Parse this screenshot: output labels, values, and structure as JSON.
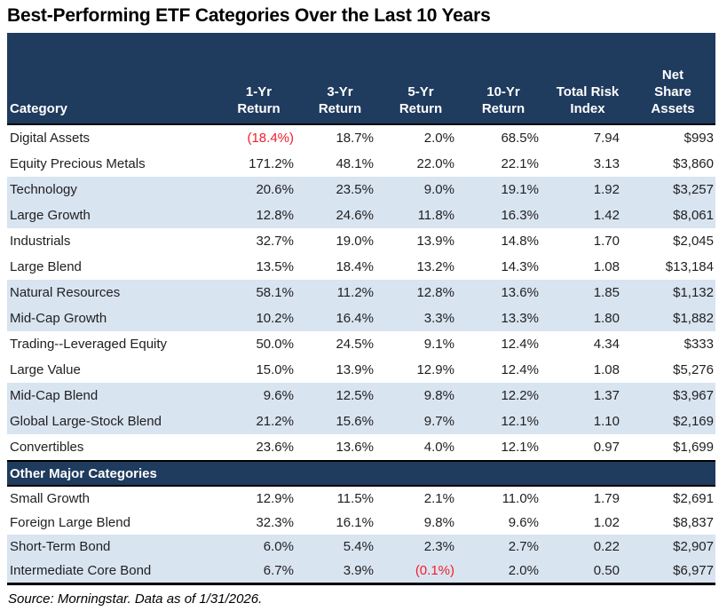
{
  "title": "Best-Performing ETF Categories Over the Last 10 Years",
  "colors": {
    "header_bg": "#1F3B5E",
    "band_row_bg": "#D9E4F1",
    "negative_value": "#F01E28",
    "header_text": "#ffffff",
    "body_text": "#1f1f1f"
  },
  "footer": {
    "source_note": "Source: Morningstar. Data as of 1/31/2026."
  },
  "chart_data": {
    "type": "table",
    "title": "Best-Performing ETF Categories Over the Last 10 Years",
    "columns": [
      "Category",
      "1-Yr Return",
      "3-Yr Return",
      "5-Yr Return",
      "10-Yr Return",
      "Total Risk Index",
      "Net Share Assets"
    ],
    "columns_lines": [
      {
        "lines": [
          "Category"
        ]
      },
      {
        "lines": [
          "1-Yr",
          "Return"
        ]
      },
      {
        "lines": [
          "3-Yr",
          "Return"
        ]
      },
      {
        "lines": [
          "5-Yr",
          "Return"
        ]
      },
      {
        "lines": [
          "10-Yr",
          "Return"
        ]
      },
      {
        "lines": [
          "Total Risk",
          "Index"
        ]
      },
      {
        "lines": [
          "Net",
          "Share",
          "Assets"
        ]
      }
    ],
    "main_rows": [
      {
        "category": "Digital Assets",
        "r1": "(18.4%)",
        "r3": "18.7%",
        "r5": "2.0%",
        "r10": "68.5%",
        "risk": "7.94",
        "assets": "$993"
      },
      {
        "category": "Equity Precious Metals",
        "r1": "171.2%",
        "r3": "48.1%",
        "r5": "22.0%",
        "r10": "22.1%",
        "risk": "3.13",
        "assets": "$3,860"
      },
      {
        "category": "Technology",
        "r1": "20.6%",
        "r3": "23.5%",
        "r5": "9.0%",
        "r10": "19.1%",
        "risk": "1.92",
        "assets": "$3,257"
      },
      {
        "category": "Large Growth",
        "r1": "12.8%",
        "r3": "24.6%",
        "r5": "11.8%",
        "r10": "16.3%",
        "risk": "1.42",
        "assets": "$8,061"
      },
      {
        "category": "Industrials",
        "r1": "32.7%",
        "r3": "19.0%",
        "r5": "13.9%",
        "r10": "14.8%",
        "risk": "1.70",
        "assets": "$2,045"
      },
      {
        "category": "Large Blend",
        "r1": "13.5%",
        "r3": "18.4%",
        "r5": "13.2%",
        "r10": "14.3%",
        "risk": "1.08",
        "assets": "$13,184"
      },
      {
        "category": "Natural Resources",
        "r1": "58.1%",
        "r3": "11.2%",
        "r5": "12.8%",
        "r10": "13.6%",
        "risk": "1.85",
        "assets": "$1,132"
      },
      {
        "category": "Mid-Cap Growth",
        "r1": "10.2%",
        "r3": "16.4%",
        "r5": "3.3%",
        "r10": "13.3%",
        "risk": "1.80",
        "assets": "$1,882"
      },
      {
        "category": "Trading--Leveraged Equity",
        "r1": "50.0%",
        "r3": "24.5%",
        "r5": "9.1%",
        "r10": "12.4%",
        "risk": "4.34",
        "assets": "$333"
      },
      {
        "category": "Large Value",
        "r1": "15.0%",
        "r3": "13.9%",
        "r5": "12.9%",
        "r10": "12.4%",
        "risk": "1.08",
        "assets": "$5,276"
      },
      {
        "category": "Mid-Cap Blend",
        "r1": "9.6%",
        "r3": "12.5%",
        "r5": "9.8%",
        "r10": "12.2%",
        "risk": "1.37",
        "assets": "$3,967"
      },
      {
        "category": "Global Large-Stock Blend",
        "r1": "21.2%",
        "r3": "15.6%",
        "r5": "9.7%",
        "r10": "12.1%",
        "risk": "1.10",
        "assets": "$2,169"
      },
      {
        "category": "Convertibles",
        "r1": "23.6%",
        "r3": "13.6%",
        "r5": "4.0%",
        "r10": "12.1%",
        "risk": "0.97",
        "assets": "$1,699"
      }
    ],
    "section_label": "Other Major Categories",
    "other_rows": [
      {
        "category": "Small Growth",
        "r1": "12.9%",
        "r3": "11.5%",
        "r5": "2.1%",
        "r10": "11.0%",
        "risk": "1.79",
        "assets": "$2,691"
      },
      {
        "category": "Foreign Large Blend",
        "r1": "32.3%",
        "r3": "16.1%",
        "r5": "9.8%",
        "r10": "9.6%",
        "risk": "1.02",
        "assets": "$8,837"
      },
      {
        "category": "Short-Term Bond",
        "r1": "6.0%",
        "r3": "5.4%",
        "r5": "2.3%",
        "r10": "2.7%",
        "risk": "0.22",
        "assets": "$2,907"
      },
      {
        "category": "Intermediate Core Bond",
        "r1": "6.7%",
        "r3": "3.9%",
        "r5": "(0.1%)",
        "r10": "2.0%",
        "risk": "0.50",
        "assets": "$6,977"
      }
    ]
  }
}
